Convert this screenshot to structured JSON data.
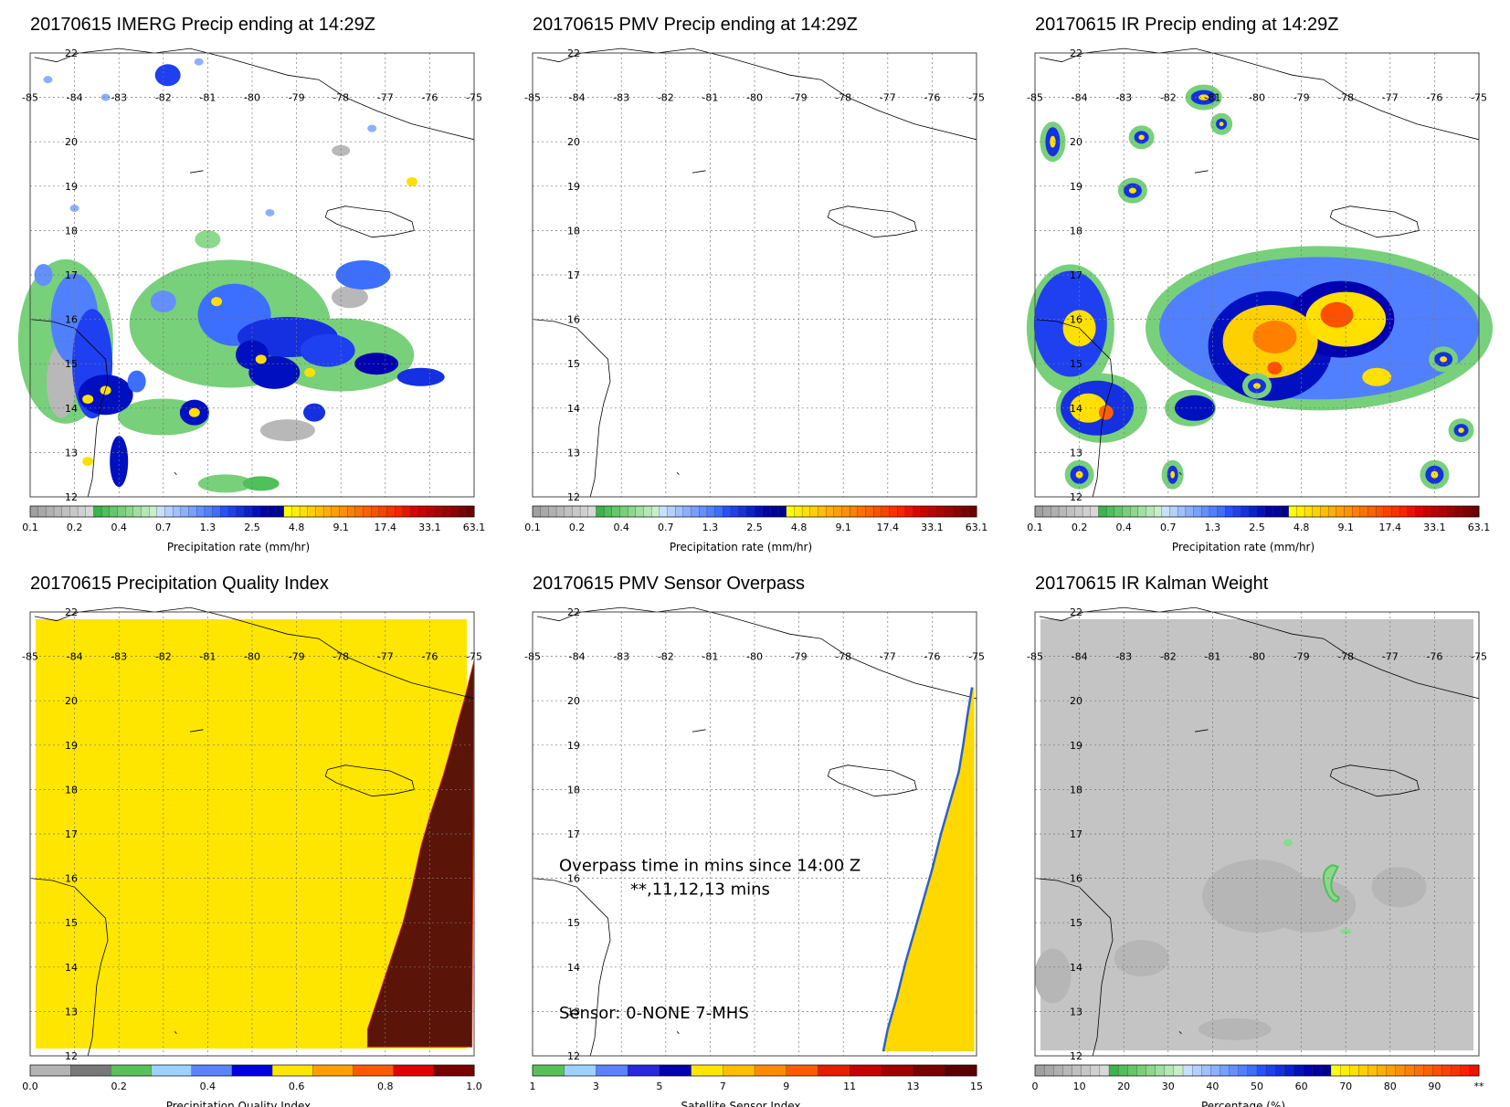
{
  "panels": [
    {
      "title": "20170615 IMERG Precip ending at 14:29Z",
      "type": "precip",
      "colorbar": "precip",
      "cblabel": "Precipitation rate (mm/hr)"
    },
    {
      "title": "20170615 PMV Precip ending at 14:29Z",
      "type": "empty",
      "colorbar": "precip",
      "cblabel": "Precipitation rate (mm/hr)"
    },
    {
      "title": "20170615 IR Precip ending at 14:29Z",
      "type": "ir",
      "colorbar": "precip",
      "cblabel": "Precipitation rate (mm/hr)"
    },
    {
      "title": "20170615 Precipitation Quality Index",
      "type": "quality",
      "colorbar": "quality",
      "cblabel": "Precipitation Quality Index"
    },
    {
      "title": "20170615 PMV Sensor Overpass",
      "type": "sensor",
      "colorbar": "sensor",
      "cblabel": "Satellite Sensor Index",
      "annotation": {
        "line1": "Overpass time in mins since 14:00 Z",
        "line2": "**,11,12,13 mins",
        "sensor": "Sensor:   0-NONE  7-MHS"
      }
    },
    {
      "title": "20170615 IR Kalman Weight",
      "type": "kalman",
      "colorbar": "percent",
      "cblabel": "Percentage (%)"
    }
  ],
  "chart_data": [
    {
      "type": "heatmap",
      "title": "20170615 IMERG Precip ending at 14:29Z",
      "xlim": [
        -85,
        -75
      ],
      "ylim": [
        12,
        22
      ],
      "colorbar_label": "Precipitation rate (mm/hr)",
      "colorbar_ticks": [
        "0.1",
        "0.2",
        "0.4",
        "0.7",
        "1.3",
        "2.5",
        "4.8",
        "9.1",
        "17.4",
        "33.1",
        "63.1"
      ]
    },
    {
      "type": "heatmap",
      "title": "20170615 PMV Precip ending at 14:29Z",
      "xlim": [
        -85,
        -75
      ],
      "ylim": [
        12,
        22
      ],
      "colorbar_label": "Precipitation rate (mm/hr)",
      "colorbar_ticks": [
        "0.1",
        "0.2",
        "0.4",
        "0.7",
        "1.3",
        "2.5",
        "4.8",
        "9.1",
        "17.4",
        "33.1",
        "63.1"
      ]
    },
    {
      "type": "heatmap",
      "title": "20170615 IR Precip ending at 14:29Z",
      "xlim": [
        -85,
        -75
      ],
      "ylim": [
        12,
        22
      ],
      "colorbar_label": "Precipitation rate (mm/hr)",
      "colorbar_ticks": [
        "0.1",
        "0.2",
        "0.4",
        "0.7",
        "1.3",
        "2.5",
        "4.8",
        "9.1",
        "17.4",
        "33.1",
        "63.1"
      ]
    },
    {
      "type": "heatmap",
      "title": "20170615 Precipitation Quality Index",
      "xlim": [
        -85,
        -75
      ],
      "ylim": [
        12,
        22
      ],
      "colorbar_label": "Precipitation Quality Index",
      "colorbar_ticks": [
        "0.0",
        "0.2",
        "0.4",
        "0.6",
        "0.8",
        "1.0"
      ]
    },
    {
      "type": "heatmap",
      "title": "20170615 PMV Sensor Overpass",
      "xlim": [
        -85,
        -75
      ],
      "ylim": [
        12,
        22
      ],
      "colorbar_label": "Satellite Sensor Index",
      "colorbar_ticks": [
        "1",
        "3",
        "5",
        "7",
        "9",
        "11",
        "13",
        "15"
      ]
    },
    {
      "type": "heatmap",
      "title": "20170615 IR Kalman Weight",
      "xlim": [
        -85,
        -75
      ],
      "ylim": [
        12,
        22
      ],
      "colorbar_label": "Percentage (%)",
      "colorbar_ticks": [
        "0",
        "10",
        "20",
        "30",
        "40",
        "50",
        "60",
        "70",
        "80",
        "90",
        "**"
      ]
    }
  ],
  "map_axes": {
    "lon_labels": [
      "-85",
      "-84",
      "-83",
      "-82",
      "-81",
      "-80",
      "-79",
      "-78",
      "-77",
      "-76",
      "-75"
    ],
    "lat_labels": [
      "12",
      "13",
      "14",
      "15",
      "16",
      "17",
      "18",
      "19",
      "20",
      "21",
      "22"
    ]
  },
  "colorbars": {
    "precip": {
      "colors": [
        "#a0a0a0",
        "#a8a8a8",
        "#b0b0b0",
        "#b8b8b8",
        "#c0c0c0",
        "#c8c8c8",
        "#d0d0d0",
        "#d8d8d8",
        "#3cb44b",
        "#50c05a",
        "#64c86a",
        "#78d07a",
        "#8cd88c",
        "#a0e0a0",
        "#b4e8b4",
        "#c8f0c8",
        "#c8e0ff",
        "#b4d0ff",
        "#a0c0ff",
        "#8cb0ff",
        "#78a0ff",
        "#6490ff",
        "#5080ff",
        "#3c6eff",
        "#2850ff",
        "#1e40f0",
        "#1430e0",
        "#0a20d0",
        "#0010c0",
        "#0000b0",
        "#0000a0",
        "#000090",
        "#ffff00",
        "#fff000",
        "#ffe000",
        "#ffd000",
        "#ffc000",
        "#ffb000",
        "#ffa000",
        "#ff9000",
        "#ff8000",
        "#ff7000",
        "#ff6000",
        "#ff5000",
        "#ff4000",
        "#ff3000",
        "#ff2000",
        "#f01000",
        "#e00000",
        "#d00000",
        "#c00000",
        "#b00000",
        "#a00000",
        "#900000",
        "#800000",
        "#700000"
      ],
      "ticks": [
        "0.1",
        "0.2",
        "0.4",
        "0.7",
        "1.3",
        "2.5",
        "4.8",
        "9.1",
        "17.4",
        "33.1",
        "63.1"
      ]
    },
    "quality": {
      "colors": [
        "#b4b4b4",
        "#787878",
        "#5ac05a",
        "#9cd2ff",
        "#5a82ff",
        "#0000e0",
        "#ffe600",
        "#ffa000",
        "#ff5a00",
        "#e00000",
        "#780000"
      ],
      "ticks": [
        "0.0",
        "0.2",
        "0.4",
        "0.6",
        "0.8",
        "1.0"
      ]
    },
    "sensor": {
      "colors": [
        "#5ac05a",
        "#9cd2ff",
        "#5a82ff",
        "#2828e0",
        "#0000b0",
        "#ffe600",
        "#ffbe00",
        "#ff8c00",
        "#ff5a00",
        "#e61e00",
        "#c80000",
        "#a00000",
        "#780000",
        "#5a0000"
      ],
      "ticks": [
        "1",
        "3",
        "5",
        "7",
        "9",
        "11",
        "13",
        "15"
      ]
    },
    "percent": {
      "colors": [
        "#a0a0a0",
        "#a8a8a8",
        "#b0b0b0",
        "#b8b8b8",
        "#c0c0c0",
        "#c8c8c8",
        "#d0d0d0",
        "#d8d8d8",
        "#3cb44b",
        "#50c05a",
        "#64c86a",
        "#78d07a",
        "#8cd88c",
        "#a0e0a0",
        "#b4e8b4",
        "#c8f0c8",
        "#c8e0ff",
        "#b4d0ff",
        "#a0c0ff",
        "#8cb0ff",
        "#78a0ff",
        "#6490ff",
        "#5080ff",
        "#3c6eff",
        "#2850ff",
        "#1e40f0",
        "#1430e0",
        "#0a20d0",
        "#0010c0",
        "#0000b0",
        "#0000a0",
        "#000090",
        "#ffff00",
        "#fff000",
        "#ffe000",
        "#ffd000",
        "#ffc000",
        "#ffb000",
        "#ffa000",
        "#ff9000",
        "#ff8000",
        "#ff7000",
        "#ff6000",
        "#ff5000",
        "#ff4000",
        "#ff3000",
        "#ff2000",
        "#f01000"
      ],
      "ticks": [
        "0",
        "10",
        "20",
        "30",
        "40",
        "50",
        "60",
        "70",
        "80",
        "90",
        "**"
      ]
    }
  }
}
